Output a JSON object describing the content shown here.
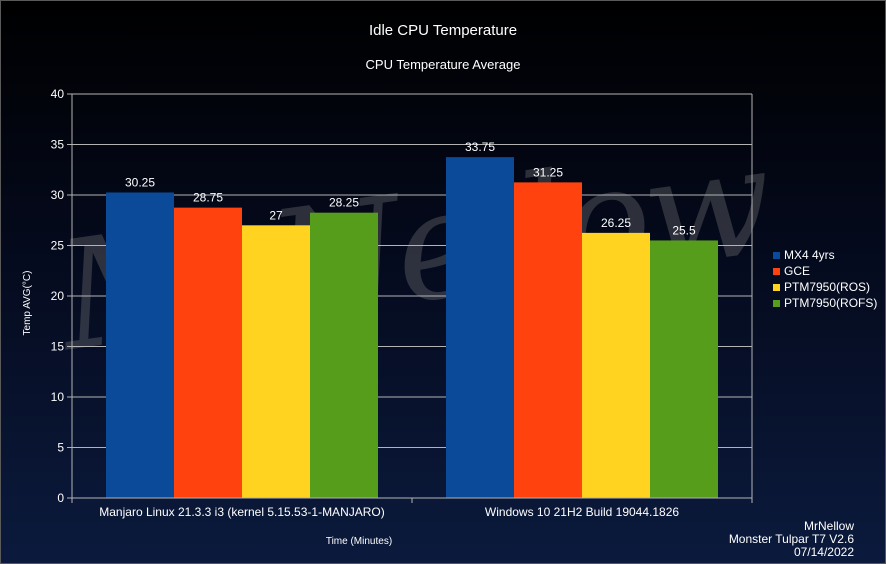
{
  "watermark": "MrNellow",
  "credits": [
    "MrNellow",
    "Monster Tulpar T7 V2.6",
    "07/14/2022"
  ],
  "chart_data": {
    "type": "bar",
    "title": "Idle CPU Temperature",
    "subtitle": "CPU Temperature Average",
    "xlabel": "Time (Minutes)",
    "ylabel": "Temp AVG(°C)",
    "ylim": [
      0,
      40
    ],
    "yticks": [
      0,
      5,
      10,
      15,
      20,
      25,
      30,
      35,
      40
    ],
    "grid": true,
    "legend_position": "right",
    "categories": [
      "Manjaro Linux 21.3.3 i3 (kernel 5.15.53-1-MANJARO)",
      "Windows 10 21H2 Build 19044.1826"
    ],
    "series": [
      {
        "name": "MX4 4yrs",
        "color": "#0a4a99",
        "values": [
          30.25,
          33.75
        ]
      },
      {
        "name": "GCE",
        "color": "#ff420e",
        "values": [
          28.75,
          31.25
        ]
      },
      {
        "name": "PTM7950(ROS)",
        "color": "#ffd320",
        "values": [
          27,
          26.25
        ]
      },
      {
        "name": "PTM7950(ROFS)",
        "color": "#579d1c",
        "values": [
          28.25,
          25.5
        ]
      }
    ],
    "data_labels": [
      [
        "30.25",
        "33.75"
      ],
      [
        "28.75",
        "31.25"
      ],
      [
        "27",
        "26.25"
      ],
      [
        "28.25",
        "25.5"
      ]
    ]
  }
}
